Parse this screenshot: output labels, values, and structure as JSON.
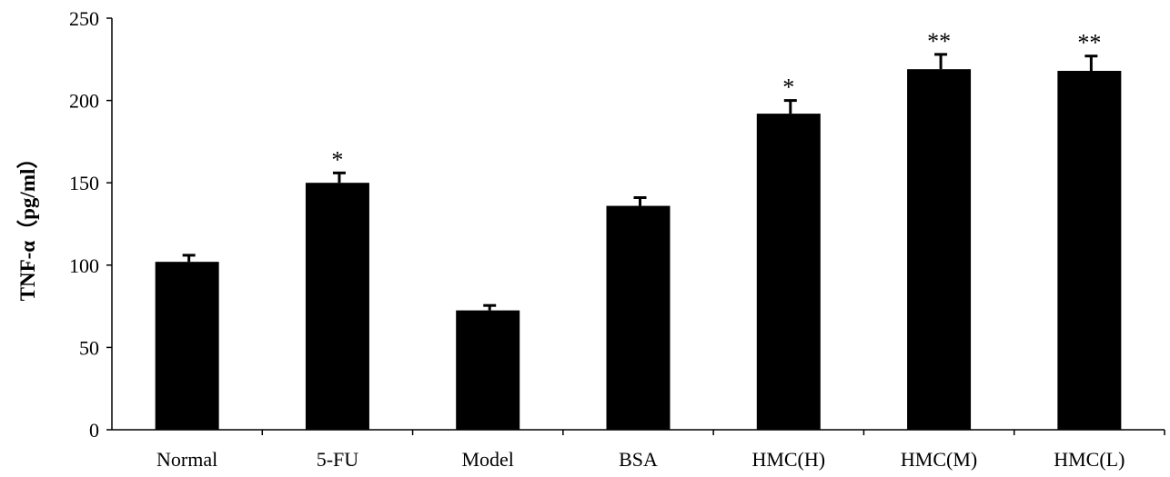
{
  "chart_data": {
    "type": "bar",
    "title": "",
    "xlabel": "",
    "ylabel": "TNF-α（pg/ml）",
    "ylim": [
      0,
      250
    ],
    "yticks": [
      0,
      50,
      100,
      150,
      200,
      250
    ],
    "grid": false,
    "legend": "none",
    "bar_color": "#000000",
    "categories": [
      "Normal",
      "5-FU",
      "Model",
      "BSA",
      "HMC(H)",
      "HMC(M)",
      "HMC(L)"
    ],
    "values": [
      102,
      150,
      72.5,
      136,
      192,
      219,
      218
    ],
    "errors": [
      4,
      6,
      3,
      5,
      8,
      9,
      9
    ],
    "significance": [
      "",
      "*",
      "",
      "",
      "*",
      "**",
      "**"
    ]
  }
}
